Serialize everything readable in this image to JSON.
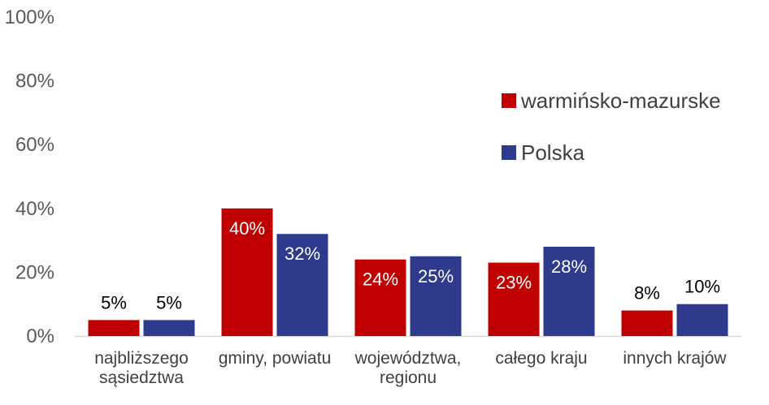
{
  "chart_data": {
    "type": "bar",
    "categories": [
      "najbliższego sąsiedztwa",
      "gminy, powiatu",
      "województwa, regionu",
      "całego kraju",
      "innych krajów"
    ],
    "category_lines": [
      [
        "najbliższego",
        "sąsiedztwa"
      ],
      [
        "gminy, powiatu"
      ],
      [
        "województwa,",
        "regionu"
      ],
      [
        "całego kraju"
      ],
      [
        "innych krajów"
      ]
    ],
    "series": [
      {
        "name": "warmińsko-mazurske",
        "color": "#c00000",
        "values": [
          5,
          40,
          24,
          23,
          8
        ],
        "labels": [
          "5%",
          "40%",
          "24%",
          "23%",
          "8%"
        ]
      },
      {
        "name": "Polska",
        "color": "#2e3a8c",
        "values": [
          5,
          32,
          25,
          28,
          10
        ],
        "labels": [
          "5%",
          "32%",
          "25%",
          "28%",
          "10%"
        ]
      }
    ],
    "ylim": [
      0,
      100
    ],
    "yticks": [
      "0%",
      "20%",
      "40%",
      "60%",
      "80%",
      "100%"
    ],
    "grid": false,
    "legend_position": "right",
    "xlabel": "",
    "ylabel": ""
  }
}
